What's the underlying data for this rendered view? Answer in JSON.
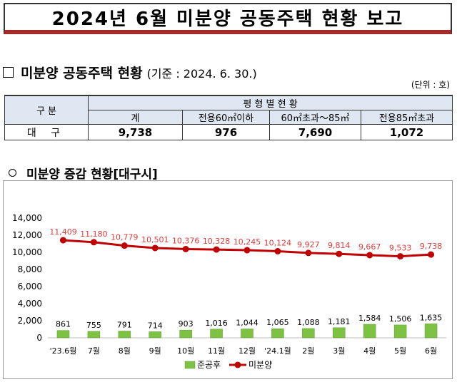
{
  "title": "2024년 6월 미분양 공동주택 현황 보고",
  "section1": {
    "heading": "미분양 공동주택 현황",
    "basis": "(기준 : 2024. 6. 30.)",
    "unit": "(단위 : 호)"
  },
  "table": {
    "category_header": "구  분",
    "group_header": "평  형  별  현  황",
    "columns": [
      "계",
      "전용60㎡이하",
      "60㎡초과～85㎡",
      "전용85㎡초과"
    ],
    "row": {
      "label": "대 구",
      "values": [
        "9,738",
        "976",
        "7,690",
        "1,072"
      ]
    }
  },
  "section2": {
    "heading": "미분양 증감 현황[대구시]"
  },
  "chart_data": {
    "type": "bar",
    "title": "미분양 증감 현황[대구시]",
    "categories": [
      "'23.6월",
      "7월",
      "8월",
      "9월",
      "10월",
      "11월",
      "12월",
      "'24.1월",
      "2월",
      "3월",
      "4월",
      "5월",
      "6월"
    ],
    "y_ticks": [
      "0",
      "2,000",
      "4,000",
      "6,000",
      "8,000",
      "10,000",
      "12,000",
      "14,000"
    ],
    "ylim": [
      0,
      14000
    ],
    "series": [
      {
        "name": "준공후",
        "kind": "bar",
        "color": "#7dc242",
        "values": [
          861,
          755,
          791,
          714,
          903,
          1016,
          1044,
          1065,
          1088,
          1181,
          1584,
          1506,
          1635
        ],
        "labels": [
          "861",
          "755",
          "791",
          "714",
          "903",
          "1,016",
          "1,044",
          "1,065",
          "1,088",
          "1,181",
          "1,584",
          "1,506",
          "1,635"
        ]
      },
      {
        "name": "미분양",
        "kind": "line",
        "color": "#c00000",
        "label_color": "#e23a3a",
        "values": [
          11409,
          11180,
          10779,
          10501,
          10376,
          10328,
          10245,
          10124,
          9927,
          9814,
          9667,
          9533,
          9738
        ],
        "labels": [
          "11,409",
          "11,180",
          "10,779",
          "10,501",
          "10,376",
          "10,328",
          "10,245",
          "10,124",
          "9,927",
          "9,814",
          "9,667",
          "9,533",
          "9,738"
        ]
      }
    ],
    "legend": [
      "준공후",
      "미분양"
    ],
    "legend_position": "bottom"
  }
}
